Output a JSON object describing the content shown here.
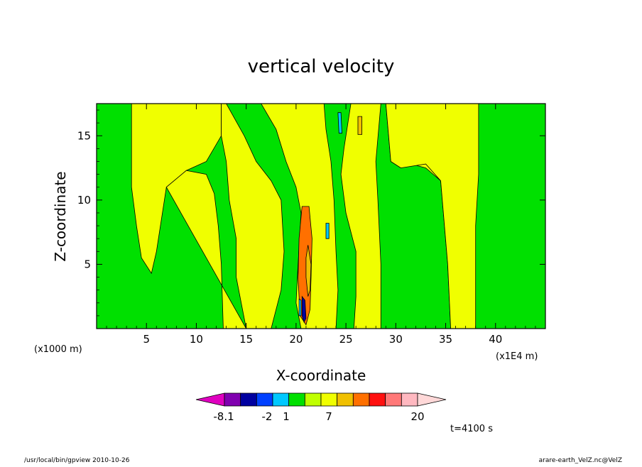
{
  "chart_data": {
    "type": "heatmap",
    "title": "vertical velocity",
    "xlabel": "X-coordinate",
    "ylabel": "Z-coordinate",
    "x_unit_label": "(x1000 m)",
    "x_scale_label": "(x1E4 m)",
    "xlim": [
      0,
      45
    ],
    "ylim": [
      0,
      17.5
    ],
    "xticks": [
      5,
      10,
      15,
      20,
      25,
      30,
      35,
      40
    ],
    "yticks": [
      5,
      10,
      15
    ],
    "background_level_color": "#00e000",
    "regions": [
      {
        "name": "left-updraft-band",
        "color": "#f0ff00",
        "points": [
          [
            3.5,
            17.5
          ],
          [
            12.5,
            17.5
          ],
          [
            12.5,
            15
          ],
          [
            11,
            13
          ],
          [
            9,
            12.3
          ],
          [
            7,
            11
          ],
          [
            6,
            6
          ],
          [
            5.5,
            4.3
          ],
          [
            4.5,
            5.5
          ],
          [
            4,
            8
          ],
          [
            3.5,
            11
          ]
        ]
      },
      {
        "name": "lower-left-band",
        "color": "#f0ff00",
        "points": [
          [
            7,
            11
          ],
          [
            9,
            12.3
          ],
          [
            11,
            12
          ],
          [
            11.8,
            10.5
          ],
          [
            12.2,
            8
          ],
          [
            12.5,
            5
          ],
          [
            12.7,
            0
          ],
          [
            15,
            0
          ],
          [
            14,
            4
          ],
          [
            14,
            7
          ],
          [
            13.3,
            10
          ],
          [
            13,
            13
          ],
          [
            12.5,
            15
          ],
          [
            12.5,
            17.5
          ],
          [
            13,
            17.5
          ],
          [
            14.8,
            15
          ],
          [
            16,
            13
          ],
          [
            17.5,
            11.5
          ],
          [
            18.5,
            10
          ],
          [
            18.8,
            6
          ],
          [
            18.5,
            3
          ],
          [
            17.5,
            0
          ],
          [
            15,
            0
          ]
        ]
      },
      {
        "name": "central-updraft-envelope",
        "color": "#f0ff00",
        "points": [
          [
            16.5,
            17.5
          ],
          [
            18,
            15.5
          ],
          [
            19,
            13
          ],
          [
            20,
            11
          ],
          [
            20.5,
            9
          ],
          [
            20.2,
            5
          ],
          [
            20,
            2
          ],
          [
            20.5,
            0
          ],
          [
            24,
            0
          ],
          [
            24.2,
            3
          ],
          [
            24,
            6
          ],
          [
            23.8,
            10
          ],
          [
            23.5,
            13
          ],
          [
            23,
            15.5
          ],
          [
            22.8,
            17.5
          ]
        ]
      },
      {
        "name": "right-band-1",
        "color": "#f0ff00",
        "points": [
          [
            25.5,
            17.5
          ],
          [
            24.8,
            14
          ],
          [
            24.5,
            12
          ],
          [
            25,
            9
          ],
          [
            26,
            6
          ],
          [
            26,
            2.5
          ],
          [
            25.8,
            0
          ],
          [
            28.5,
            0
          ],
          [
            28.5,
            5
          ],
          [
            28.2,
            10
          ],
          [
            28,
            13
          ],
          [
            28.5,
            17.5
          ]
        ]
      },
      {
        "name": "right-band-2",
        "color": "#f0ff00",
        "points": [
          [
            29,
            17.5
          ],
          [
            29.5,
            13
          ],
          [
            30.5,
            12.5
          ],
          [
            32,
            12.8
          ],
          [
            33,
            13
          ],
          [
            34,
            12.8
          ],
          [
            35.5,
            13
          ],
          [
            36.5,
            12.3
          ],
          [
            37,
            10
          ],
          [
            37.5,
            5
          ],
          [
            37.8,
            0
          ],
          [
            35.5,
            0
          ],
          [
            35.2,
            5
          ],
          [
            34.5,
            11.5
          ],
          [
            33,
            12.5
          ],
          [
            32,
            12.7
          ]
        ]
      },
      {
        "name": "right-updraft-band",
        "color": "#f0ff00",
        "points": [
          [
            29,
            17.5
          ],
          [
            38.3,
            17.5
          ],
          [
            38.3,
            12
          ],
          [
            38,
            8
          ],
          [
            38,
            0
          ],
          [
            35.5,
            0
          ],
          [
            35.2,
            5
          ],
          [
            34.5,
            11.5
          ],
          [
            33,
            12.8
          ],
          [
            30.5,
            12.5
          ],
          [
            29.5,
            13
          ]
        ]
      },
      {
        "name": "updraft-core",
        "color": "#ff7000",
        "points": [
          [
            20.6,
            9.5
          ],
          [
            21.3,
            9.5
          ],
          [
            21.6,
            7
          ],
          [
            21.5,
            4
          ],
          [
            21.4,
            1.5
          ],
          [
            21,
            0.3
          ],
          [
            20.4,
            1
          ],
          [
            20.2,
            4
          ],
          [
            20.3,
            7
          ]
        ]
      },
      {
        "name": "updraft-core-inner",
        "color": "#f0c000",
        "points": [
          [
            21.2,
            6.5
          ],
          [
            21.5,
            5
          ],
          [
            21.4,
            3
          ],
          [
            21.2,
            2.5
          ],
          [
            21,
            4
          ],
          [
            21,
            5.5
          ]
        ]
      },
      {
        "name": "downdraft-cell-a",
        "color": "#0000a0",
        "points": [
          [
            20.6,
            2.5
          ],
          [
            20.9,
            2.2
          ],
          [
            21,
            0.8
          ],
          [
            20.8,
            0.5
          ],
          [
            20.6,
            1
          ]
        ]
      },
      {
        "name": "downdraft-cell-b",
        "color": "#00c8ff",
        "points": [
          [
            20.3,
            2.3
          ],
          [
            20.5,
            2.2
          ],
          [
            20.5,
            1
          ],
          [
            20.3,
            1
          ]
        ]
      },
      {
        "name": "upper-cell-cyan",
        "color": "#00c8ff",
        "points": [
          [
            24.2,
            16.8
          ],
          [
            24.5,
            16.8
          ],
          [
            24.6,
            15.2
          ],
          [
            24.3,
            15.2
          ]
        ]
      },
      {
        "name": "upper-cell-orange",
        "color": "#f0c000",
        "points": [
          [
            26.2,
            16.5
          ],
          [
            26.6,
            16.5
          ],
          [
            26.6,
            15.1
          ],
          [
            26.2,
            15.1
          ]
        ]
      },
      {
        "name": "mid-cell-cyan",
        "color": "#00c8ff",
        "points": [
          [
            23,
            8.2
          ],
          [
            23.3,
            8.2
          ],
          [
            23.3,
            7
          ],
          [
            23,
            7
          ]
        ]
      }
    ]
  },
  "colorbar": {
    "colors": [
      "#e000c0",
      "#8000b0",
      "#0000a0",
      "#0040ff",
      "#00c8ff",
      "#00e000",
      "#c0ff00",
      "#f0ff00",
      "#f0c000",
      "#ff7000",
      "#ff1010",
      "#ff7878",
      "#ffb8c0",
      "#ffd8d8"
    ],
    "labels": [
      "-8.1",
      "-2",
      "1",
      "7",
      "20"
    ]
  },
  "time_label": "t=4100 s",
  "footer_left": "/usr/local/bin/gpview  2010-10-26",
  "footer_right": "arare-earth_VelZ.nc@VelZ"
}
